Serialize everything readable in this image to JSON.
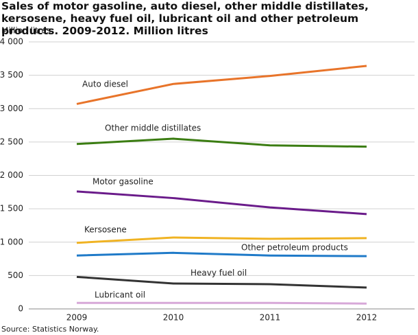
{
  "chart_data": {
    "type": "line",
    "title": "Sales of motor gasoline, auto diesel, other middle distillates, kersosene, heavy fuel oil, lubricant oil and other petroleum products. 2009-2012. Million litres",
    "y_label": "Million litres",
    "source": "Source: Statistics Norway.",
    "categories": [
      "2009",
      "2010",
      "2011",
      "2012"
    ],
    "ylim": [
      0,
      4000
    ],
    "yticks": [
      0,
      500,
      {
        "value": 1000,
        "label": "1 000"
      },
      {
        "value": 1500,
        "label": "1 500"
      },
      {
        "value": 2000,
        "label": "2 000"
      },
      {
        "value": 2500,
        "label": "2 500"
      },
      {
        "value": 3000,
        "label": "3 000"
      },
      {
        "value": 3500,
        "label": "3 500"
      },
      {
        "value": 4000,
        "label": "4 000"
      }
    ],
    "grid": true,
    "series": [
      {
        "name": "Auto diesel",
        "color": "#e8742a",
        "values": [
          3070,
          3370,
          3490,
          3640
        ]
      },
      {
        "name": "Other middle distillates",
        "color": "#3b7d12",
        "values": [
          2470,
          2550,
          2450,
          2430
        ]
      },
      {
        "name": "Motor gasoline",
        "color": "#6a1b8a",
        "values": [
          1760,
          1660,
          1520,
          1420
        ]
      },
      {
        "name": "Kersosene",
        "color": "#f0b323",
        "values": [
          990,
          1070,
          1050,
          1060
        ]
      },
      {
        "name": "Other petroleum products",
        "color": "#1f7ac8",
        "values": [
          800,
          840,
          800,
          790
        ]
      },
      {
        "name": "Heavy fuel oil",
        "color": "#333333",
        "values": [
          480,
          380,
          370,
          320
        ]
      },
      {
        "name": "Lubricant oil",
        "color": "#d7a8d8",
        "values": [
          90,
          90,
          90,
          80
        ]
      }
    ]
  }
}
